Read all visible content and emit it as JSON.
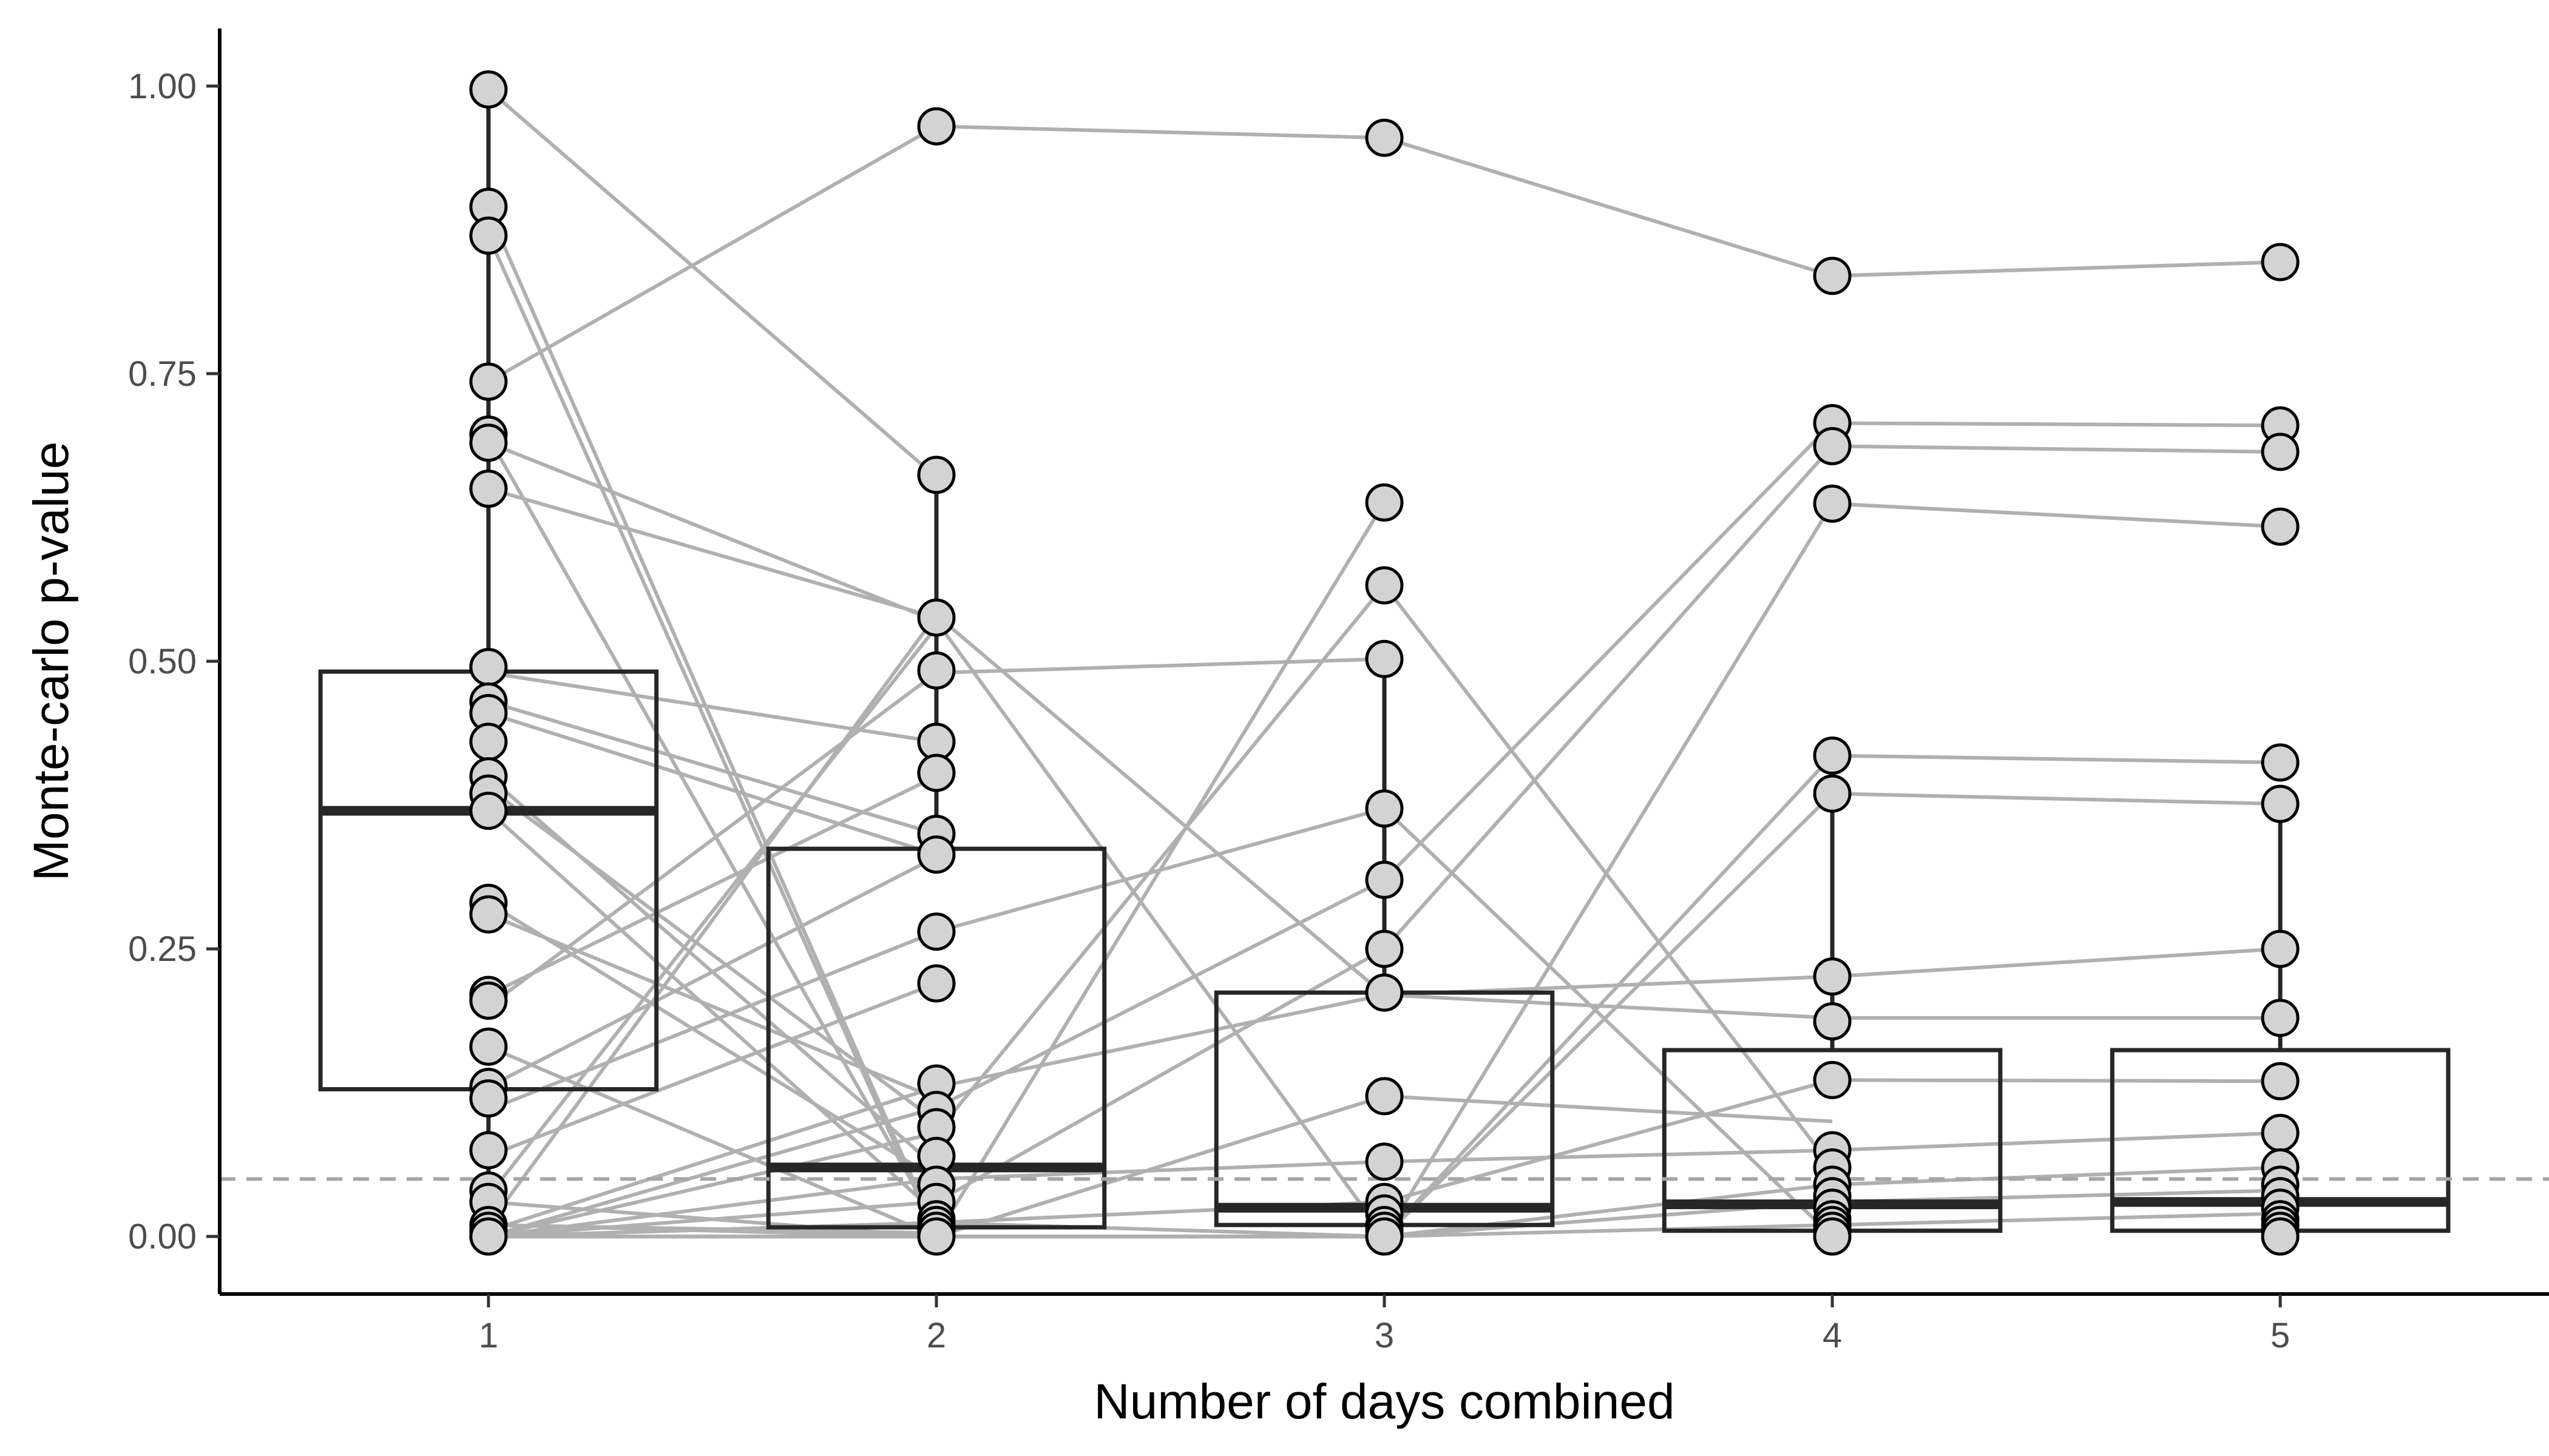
{
  "chart_data": {
    "type": "box",
    "title": "",
    "xlabel": "Number of days combined",
    "ylabel": "Monte-carlo p-value",
    "x_categories": [
      "1",
      "2",
      "3",
      "4",
      "5"
    ],
    "y_ticks": [
      "0.00",
      "0.25",
      "0.50",
      "0.75",
      "1.00"
    ],
    "xlim": [
      0.4,
      5.6
    ],
    "ylim": [
      -0.05,
      1.05
    ],
    "reference_line": {
      "y": 0.05,
      "style": "dashed",
      "color": "#a6a6a6"
    },
    "grid": false,
    "legend": "none",
    "colors": {
      "points": "#d3d3d3",
      "tracks": "#b0b0b0",
      "boxes": "#262626"
    },
    "boxes": [
      {
        "x": "1",
        "q1": 0.128,
        "median": 0.37,
        "q3": 0.491,
        "whisker_low": 0.0,
        "whisker_high": 0.997
      },
      {
        "x": "2",
        "q1": 0.008,
        "median": 0.06,
        "q3": 0.337,
        "whisker_low": 0.0,
        "whisker_high": 0.662
      },
      {
        "x": "3",
        "q1": 0.01,
        "median": 0.025,
        "q3": 0.212,
        "whisker_low": 0.0,
        "whisker_high": 0.502
      },
      {
        "x": "4",
        "q1": 0.005,
        "median": 0.028,
        "q3": 0.162,
        "whisker_low": 0.0,
        "whisker_high": 0.385
      },
      {
        "x": "5",
        "q1": 0.005,
        "median": 0.03,
        "q3": 0.162,
        "whisker_low": 0.0,
        "whisker_high": 0.376
      }
    ],
    "tracks": [
      [
        0.743,
        0.965,
        0.955,
        0.835,
        0.847
      ],
      [
        0.997,
        0.66
      ],
      [
        0.65,
        0.538
      ],
      [
        0.49,
        0.43
      ],
      [
        0.465,
        0.35
      ],
      [
        0.455,
        0.332
      ],
      [
        0.4,
        0.06
      ],
      [
        0.37,
        0.02
      ],
      [
        0.39,
        0.1
      ],
      [
        0.28,
        0.12
      ],
      [
        0.29,
        0.05
      ],
      [
        0.21,
        0.4
      ],
      [
        0.2,
        0.49,
        0.502
      ],
      [
        0.13,
        0.33
      ],
      [
        0.07,
        0.22
      ],
      [
        0.01,
        0.54,
        0.21,
        0.19,
        0.19
      ],
      [
        0.01,
        0.0,
        0.638
      ],
      [
        0.035,
        0.53
      ],
      [
        0.005,
        0.13,
        0.21,
        0.226,
        0.25
      ],
      [
        0.01,
        0.003
      ],
      [
        0.892,
        0.003
      ],
      [
        0.87,
        0.0
      ],
      [
        0.695,
        0.01
      ],
      [
        0.69,
        0.535,
        0.0
      ],
      [
        0.11,
        0.265,
        0.372,
        0.0
      ],
      [
        0.165,
        0.0
      ],
      [
        0.03,
        0.0,
        0.0
      ],
      [
        0.0,
        0.0
      ],
      [
        0.0,
        0.0,
        0.122,
        0.1
      ],
      [
        0.0,
        0.112,
        0.31,
        0.707,
        0.705
      ],
      [
        0.0,
        0.09,
        0.566,
        0.06
      ],
      [
        0.0,
        0.03,
        0.25,
        0.687,
        0.682
      ],
      [
        0.0,
        0.012,
        0.0,
        0.637,
        0.617
      ],
      [
        0.0,
        0.0,
        0.0,
        0.418,
        0.412
      ],
      [
        0.0,
        0.0,
        0.0,
        0.385,
        0.376
      ],
      [
        0.0,
        0.012,
        0.03,
        0.136,
        0.135
      ],
      [
        0.0,
        0.05,
        0.065,
        0.075,
        0.09
      ],
      [
        0.0,
        0.0,
        0.0,
        0.045,
        0.06
      ],
      [
        0.0,
        0.0,
        0.0,
        0.03,
        0.04
      ],
      [
        0.0,
        0.0,
        0.0,
        0.01,
        0.02
      ]
    ],
    "points": {
      "1": [
        0.997,
        0.895,
        0.87,
        0.743,
        0.697,
        0.69,
        0.65,
        0.495,
        0.465,
        0.455,
        0.43,
        0.4,
        0.385,
        0.37,
        0.29,
        0.28,
        0.21,
        0.205,
        0.165,
        0.13,
        0.12,
        0.075,
        0.04,
        0.03,
        0.01,
        0.005,
        0.0
      ],
      "2": [
        0.965,
        0.662,
        0.538,
        0.492,
        0.43,
        0.403,
        0.35,
        0.332,
        0.265,
        0.22,
        0.133,
        0.11,
        0.095,
        0.07,
        0.045,
        0.03,
        0.015,
        0.01,
        0.005,
        0.0
      ],
      "3": [
        0.955,
        0.638,
        0.566,
        0.502,
        0.372,
        0.31,
        0.25,
        0.212,
        0.122,
        0.065,
        0.03,
        0.02,
        0.01,
        0.005,
        0.0
      ],
      "4": [
        0.835,
        0.707,
        0.687,
        0.637,
        0.418,
        0.385,
        0.226,
        0.187,
        0.136,
        0.075,
        0.06,
        0.045,
        0.035,
        0.025,
        0.015,
        0.01,
        0.005,
        0.0
      ],
      "5": [
        0.847,
        0.705,
        0.682,
        0.617,
        0.412,
        0.376,
        0.25,
        0.19,
        0.135,
        0.09,
        0.06,
        0.045,
        0.035,
        0.025,
        0.015,
        0.01,
        0.005,
        0.0
      ]
    }
  }
}
